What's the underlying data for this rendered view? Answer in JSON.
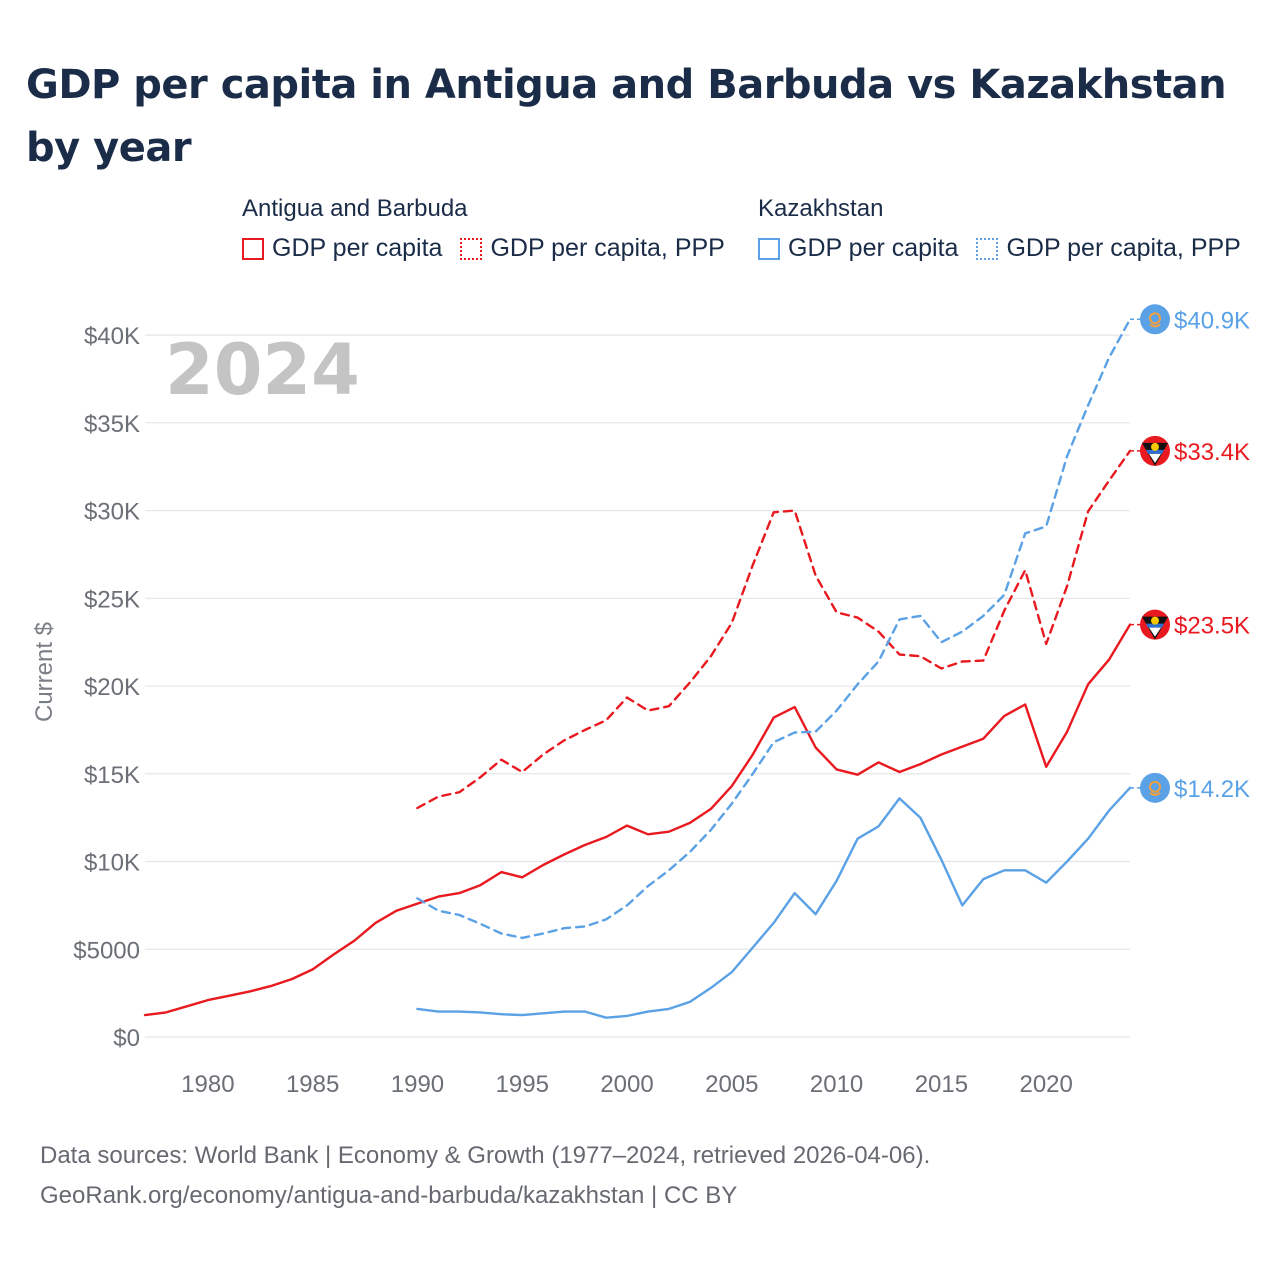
{
  "title": "GDP per capita in Antigua and Barbuda vs Kazakhstan by year",
  "legend": {
    "groups": [
      {
        "name": "Antigua and Barbuda",
        "color": "#e8191f",
        "items": [
          {
            "label": "GDP per capita",
            "style": "solid"
          },
          {
            "label": "GDP per capita, PPP",
            "style": "dotted"
          }
        ]
      },
      {
        "name": "Kazakhstan",
        "color": "#5aa1e6",
        "items": [
          {
            "label": "GDP per capita",
            "style": "solid"
          },
          {
            "label": "GDP per capita, PPP",
            "style": "dotted"
          }
        ]
      }
    ]
  },
  "year_label": "2024",
  "source": {
    "line1": "Data sources: World Bank | Economy & Growth (1977–2024, retrieved 2026-04-06).",
    "line2": "GeoRank.org/economy/antigua-and-barbuda/kazakhstan | CC BY"
  },
  "chart_data": {
    "type": "line",
    "title": "GDP per capita in Antigua and Barbuda vs Kazakhstan by year",
    "xlabel": "",
    "ylabel": "Current $",
    "xlim": [
      1977,
      2024
    ],
    "ylim": [
      0,
      42000
    ],
    "x_ticks": [
      1980,
      1985,
      1990,
      1995,
      2000,
      2005,
      2010,
      2015,
      2020
    ],
    "y_ticks": [
      {
        "value": 0,
        "label": "$0"
      },
      {
        "value": 5000,
        "label": "$5000"
      },
      {
        "value": 10000,
        "label": "$10K"
      },
      {
        "value": 15000,
        "label": "$15K"
      },
      {
        "value": 20000,
        "label": "$20K"
      },
      {
        "value": 25000,
        "label": "$25K"
      },
      {
        "value": 30000,
        "label": "$30K"
      },
      {
        "value": 35000,
        "label": "$35K"
      },
      {
        "value": 40000,
        "label": "$40K"
      }
    ],
    "grid": true,
    "series": [
      {
        "name": "Antigua and Barbuda GDP per capita",
        "country": "Antigua and Barbuda",
        "color": "#e8191f",
        "dash": "solid",
        "x_start": 1977,
        "values": [
          1250,
          1400,
          1750,
          2100,
          2350,
          2600,
          2900,
          3300,
          3850,
          4700,
          5500,
          6500,
          7200,
          7600,
          8000,
          8200,
          8650,
          9400,
          9100,
          9800,
          10400,
          10950,
          11400,
          12050,
          11550,
          11700,
          12200,
          13000,
          14300,
          16100,
          18200,
          18800,
          16500,
          15250,
          14950,
          15650,
          15100,
          15550,
          16100,
          16550,
          17000,
          18300,
          18950,
          15400,
          17400,
          20100,
          21500,
          23500
        ],
        "end_label": "$23.5K"
      },
      {
        "name": "Antigua and Barbuda GDP per capita, PPP",
        "country": "Antigua and Barbuda",
        "color": "#e8191f",
        "dash": "dashed",
        "x_start": 1990,
        "values": [
          13050,
          13700,
          13950,
          14800,
          15800,
          15100,
          16100,
          16900,
          17500,
          18050,
          19350,
          18600,
          18850,
          20200,
          21700,
          23600,
          26900,
          29900,
          30000,
          26300,
          24200,
          23900,
          23100,
          21800,
          21700,
          21000,
          21400,
          21450,
          24300,
          26600,
          22400,
          25700,
          29950,
          31700,
          33400
        ],
        "end_label": "$33.4K"
      },
      {
        "name": "Kazakhstan GDP per capita",
        "country": "Kazakhstan",
        "color": "#5aa1e6",
        "dash": "solid",
        "x_start": 1990,
        "values": [
          1600,
          1450,
          1450,
          1400,
          1300,
          1250,
          1350,
          1450,
          1450,
          1100,
          1200,
          1450,
          1600,
          2000,
          2800,
          3700,
          5100,
          6500,
          8200,
          7000,
          8900,
          11300,
          12000,
          13600,
          12500,
          10100,
          7500,
          9000,
          9500,
          9500,
          8800,
          10000,
          11300,
          12900,
          14200
        ],
        "end_label": "$14.2K"
      },
      {
        "name": "Kazakhstan GDP per capita, PPP",
        "country": "Kazakhstan",
        "color": "#5aa1e6",
        "dash": "dashed",
        "x_start": 1990,
        "values": [
          7900,
          7200,
          6950,
          6450,
          5900,
          5650,
          5900,
          6200,
          6300,
          6700,
          7500,
          8600,
          9500,
          10550,
          11800,
          13300,
          15000,
          16800,
          17350,
          17400,
          18600,
          20100,
          21400,
          23800,
          24000,
          22500,
          23100,
          24000,
          25200,
          28700,
          29100,
          33100,
          36000,
          38700,
          40900
        ],
        "end_label": "$40.9K"
      }
    ]
  }
}
